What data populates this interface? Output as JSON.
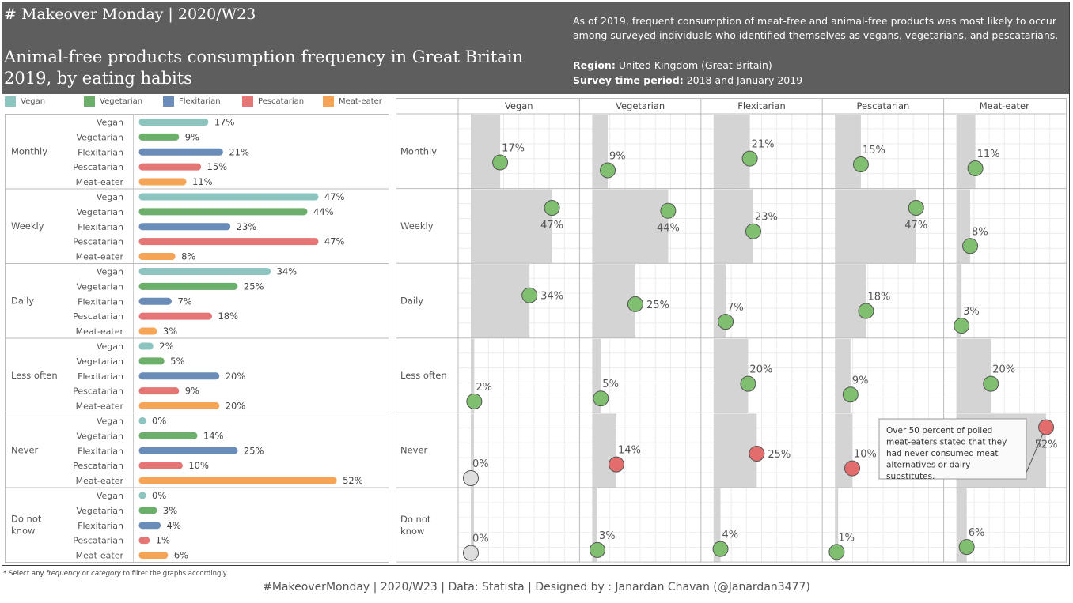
{
  "header": {
    "tag": "# Makeover Monday | 2020/W23",
    "title": "Animal-free products consumption frequency in Great Britain 2019, by eating habits",
    "description": "As of 2019, frequent consumption of meat-free and animal-free products was most likely to occur among surveyed individuals who identified themselves as vegans, vegetarians, and pescatarians.",
    "region_label": "Region:",
    "region_value": "United Kingdom (Great Britain)",
    "period_label": "Survey time period:",
    "period_value": "2018 and January 2019"
  },
  "colors": {
    "Vegan": "#8cc4bf",
    "Vegetarian": "#6caf6a",
    "Flexitarian": "#6a8cb8",
    "Pescatarian": "#e67676",
    "Meat-eater": "#f5a456",
    "dot_green": "#7fbf6f",
    "dot_red": "#e36d6d",
    "dot_grey": "#dedede",
    "shade": "#d4d4d4"
  },
  "footnote": "* Select any frequency or category to filter the graphs accordingly.",
  "footer": "#MakeoverMonday | 2020/W23 | Data: Statista | Designed by : Janardan Chavan (@Janardan3477)",
  "annotation": "Over 50 percent of polled meat-eaters stated that they had never consumed meat alternatives or dairy substitutes.",
  "chart_data": {
    "type": "bar",
    "title": "Animal-free products consumption frequency in Great Britain 2019, by eating habits",
    "categories": [
      "Monthly",
      "Weekly",
      "Daily",
      "Less often",
      "Never",
      "Do not know"
    ],
    "category_labels": [
      [
        "Monthly"
      ],
      [
        "Weekly"
      ],
      [
        "Daily"
      ],
      [
        "Less often"
      ],
      [
        "Never"
      ],
      [
        "Do not",
        "know"
      ]
    ],
    "series": [
      {
        "name": "Vegan",
        "values": [
          17,
          47,
          34,
          2,
          0,
          0
        ]
      },
      {
        "name": "Vegetarian",
        "values": [
          9,
          44,
          25,
          5,
          14,
          3
        ]
      },
      {
        "name": "Flexitarian",
        "values": [
          21,
          23,
          7,
          20,
          25,
          4
        ]
      },
      {
        "name": "Pescatarian",
        "values": [
          15,
          47,
          18,
          9,
          10,
          1
        ]
      },
      {
        "name": "Meat-eater",
        "values": [
          11,
          8,
          3,
          20,
          52,
          6
        ]
      }
    ],
    "unit": "%",
    "legend": "top-left",
    "xlim": [
      0,
      55
    ],
    "right_xlim": [
      0,
      55
    ]
  }
}
